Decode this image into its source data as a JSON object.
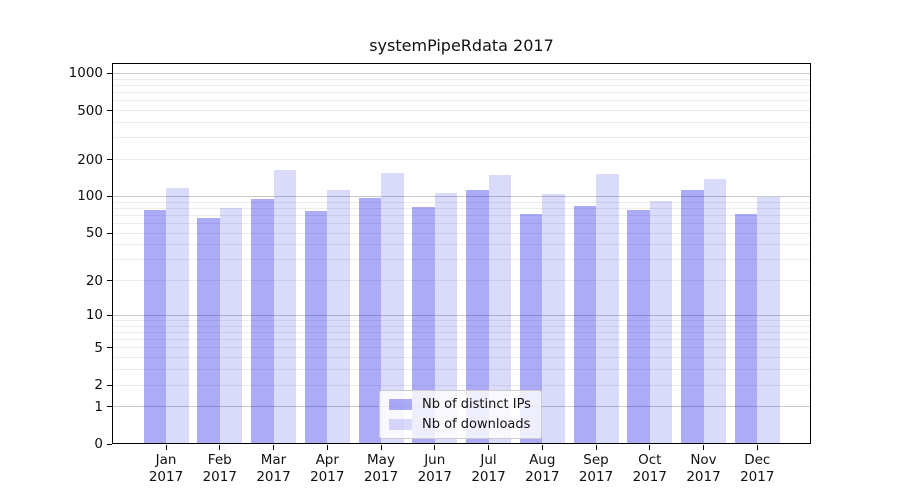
{
  "chart_data": {
    "type": "bar",
    "title": "systemPipeRdata 2017",
    "categories": [
      "Jan 2017",
      "Feb 2017",
      "Mar 2017",
      "Apr 2017",
      "May 2017",
      "Jun 2017",
      "Jul 2017",
      "Aug 2017",
      "Sep 2017",
      "Oct 2017",
      "Nov 2017",
      "Dec 2017"
    ],
    "series": [
      {
        "name": "Nb of distinct IPs",
        "values": [
          78,
          67,
          96,
          76,
          97,
          82,
          112,
          72,
          83,
          77,
          112,
          72
        ],
        "color": "rgba(25,25,230,0.36)"
      },
      {
        "name": "Nb of downloads",
        "values": [
          117,
          81,
          163,
          112,
          154,
          107,
          151,
          104,
          153,
          92,
          140,
          99
        ],
        "color": "rgba(25,25,230,0.16)"
      }
    ],
    "yscale": "log1p",
    "y_ticks": [
      0,
      1,
      2,
      5,
      10,
      20,
      50,
      100,
      200,
      500,
      1000
    ],
    "ylim": [
      0,
      1225
    ],
    "xlabel": "",
    "ylabel": "",
    "grid": true,
    "legend_position": "lower center",
    "colors": {
      "grid_minor": "#ececec",
      "grid_major": "#c9c9c9",
      "spine": "#000000",
      "text": "#111111"
    }
  }
}
